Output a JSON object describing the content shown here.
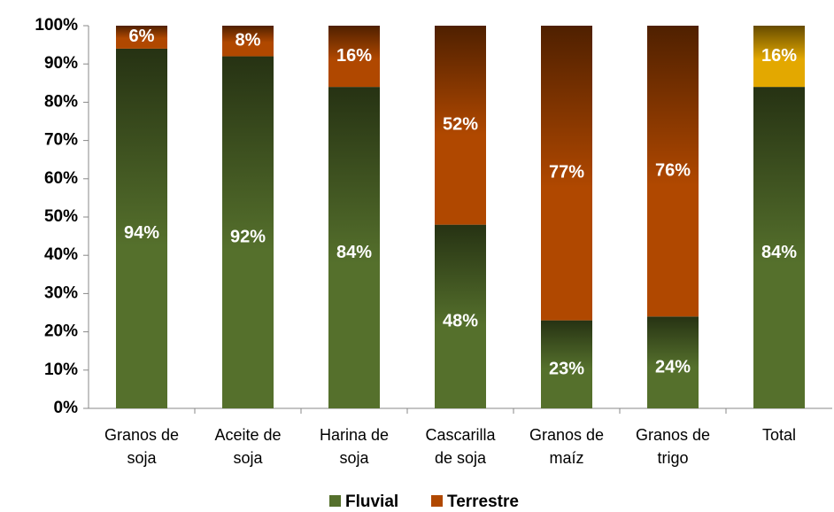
{
  "chart_data": {
    "type": "stacked_bar",
    "categories": [
      "Granos de soja",
      "Aceite de soja",
      "Harina de soja",
      "Cascarilla de soja",
      "Granos de maíz",
      "Granos de trigo",
      "Total"
    ],
    "series": [
      {
        "name": "Fluvial",
        "color": "#55702c",
        "values": [
          94,
          92,
          84,
          48,
          23,
          24,
          84
        ],
        "value_labels": [
          "94%",
          "92%",
          "84%",
          "48%",
          "23%",
          "24%",
          "84%"
        ]
      },
      {
        "name": "Terrestre",
        "color": "#b04800",
        "point_colors": [
          "#b04800",
          "#b04800",
          "#b04800",
          "#b04800",
          "#b04800",
          "#b04800",
          "#e3a800"
        ],
        "values": [
          6,
          8,
          16,
          52,
          77,
          76,
          16
        ],
        "value_labels": [
          "6%",
          "8%",
          "16%",
          "52%",
          "77%",
          "76%",
          "16%"
        ]
      }
    ],
    "ylim": [
      0,
      100
    ],
    "yticks": [
      {
        "value": 0,
        "label": "0%"
      },
      {
        "value": 10,
        "label": "10%"
      },
      {
        "value": 20,
        "label": "20%"
      },
      {
        "value": 30,
        "label": "30%"
      },
      {
        "value": 40,
        "label": "40%"
      },
      {
        "value": 50,
        "label": "50%"
      },
      {
        "value": 60,
        "label": "60%"
      },
      {
        "value": 70,
        "label": "70%"
      },
      {
        "value": 80,
        "label": "80%"
      },
      {
        "value": 90,
        "label": "90%"
      },
      {
        "value": 100,
        "label": "100%"
      }
    ],
    "legend": "bottom"
  }
}
